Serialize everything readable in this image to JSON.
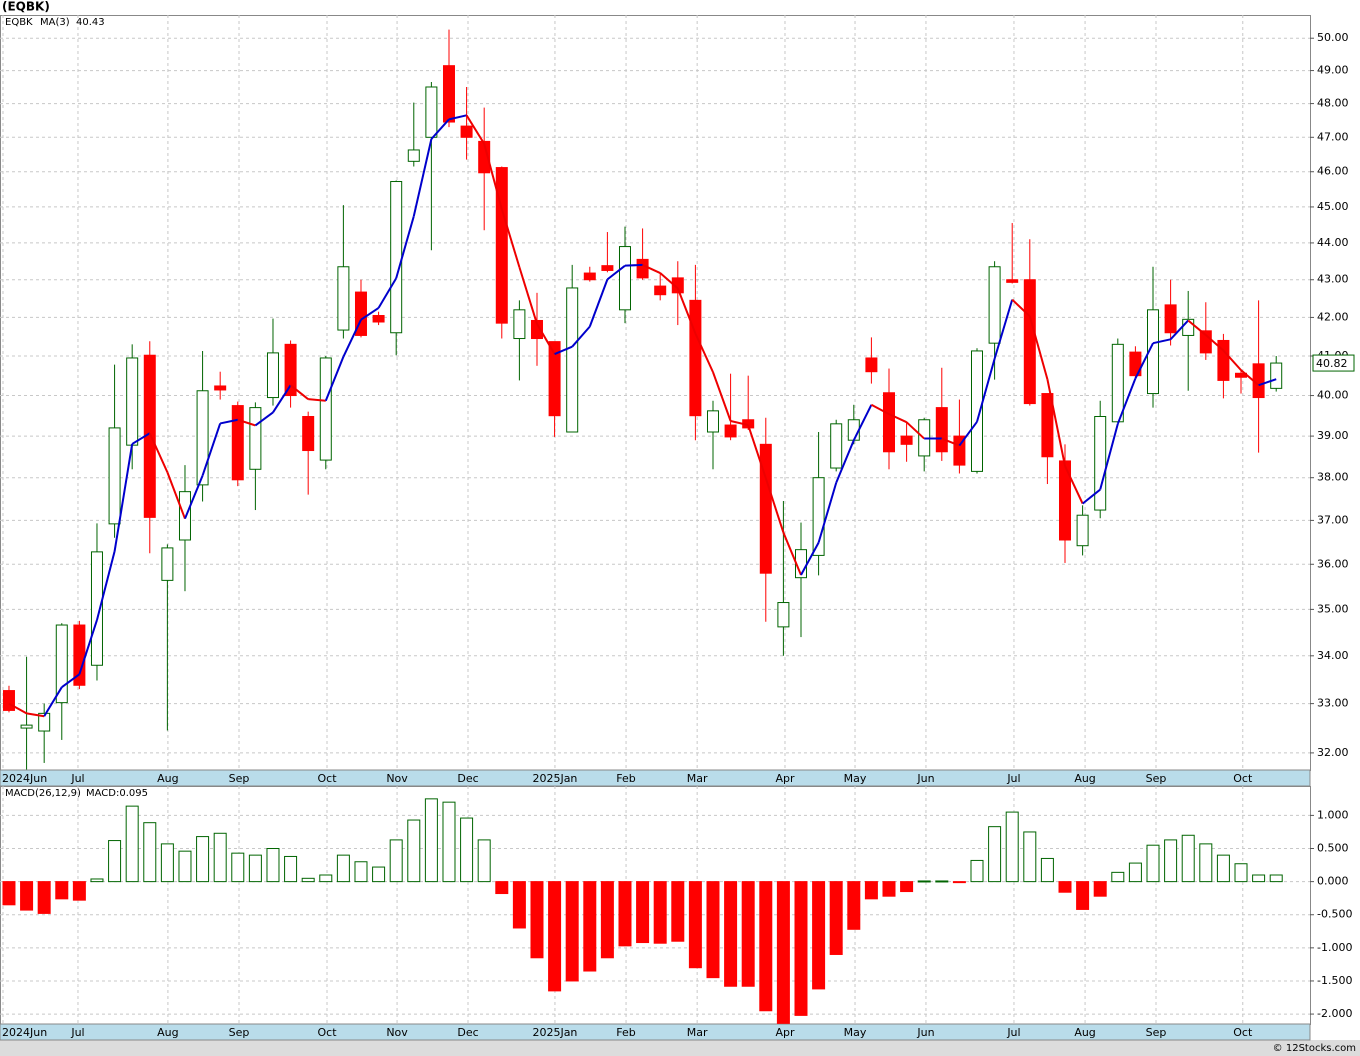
{
  "title": "(EQBK)",
  "footer": "© 12Stocks.com",
  "chart_data": [
    {
      "type": "candlestick",
      "log_scale": true,
      "grid": true,
      "xlim": [
        -0.51,
        73.92
      ],
      "ylim": [
        31.66,
        50.73
      ],
      "yticks": [
        {
          "value": 32,
          "label": "32.00"
        },
        {
          "value": 33,
          "label": "33.00"
        },
        {
          "value": 34,
          "label": "34.00"
        },
        {
          "value": 35,
          "label": "35.00"
        },
        {
          "value": 36,
          "label": "36.00"
        },
        {
          "value": 37,
          "label": "37.00"
        },
        {
          "value": 38,
          "label": "38.00"
        },
        {
          "value": 39,
          "label": "39.00"
        },
        {
          "value": 40,
          "label": "40.00"
        },
        {
          "value": 41,
          "label": "41.00"
        },
        {
          "value": 42,
          "label": "42.00"
        },
        {
          "value": 43,
          "label": "43.00"
        },
        {
          "value": 44,
          "label": "44.00"
        },
        {
          "value": 45,
          "label": "45.00"
        },
        {
          "value": 46,
          "label": "46.00"
        },
        {
          "value": 47,
          "label": "47.00"
        },
        {
          "value": 48,
          "label": "48.00"
        },
        {
          "value": 49,
          "label": "49.00"
        },
        {
          "value": 50,
          "label": "50.00"
        }
      ],
      "xticks": [
        {
          "value": -0.34,
          "label": "2024Jun"
        },
        {
          "value": 3.92,
          "label": "Jul"
        },
        {
          "value": 9.03,
          "label": "Aug"
        },
        {
          "value": 13.07,
          "label": "Sep"
        },
        {
          "value": 18.07,
          "label": "Oct"
        },
        {
          "value": 22.05,
          "label": "Nov"
        },
        {
          "value": 26.08,
          "label": "Dec"
        },
        {
          "value": 31.02,
          "label": "2025Jan"
        },
        {
          "value": 35.06,
          "label": "Feb"
        },
        {
          "value": 39.1,
          "label": "Mar"
        },
        {
          "value": 44.09,
          "label": "Apr"
        },
        {
          "value": 48.07,
          "label": "May"
        },
        {
          "value": 52.1,
          "label": "Jun"
        },
        {
          "value": 57.1,
          "label": "Jul"
        },
        {
          "value": 61.14,
          "label": "Aug"
        },
        {
          "value": 65.17,
          "label": "Sep"
        },
        {
          "value": 70.1,
          "label": "Oct"
        }
      ],
      "series": [
        {
          "name": "EQBK",
          "color": "#006400",
          "down_color": "#ff0000",
          "close_label": "40.82",
          "open": [
            33.27,
            32.5,
            32.44,
            33.02,
            34.66,
            33.8,
            36.92,
            38.78,
            41.02,
            35.64,
            36.55,
            37.83,
            40.24,
            39.75,
            38.2,
            39.95,
            41.3,
            39.48,
            38.42,
            41.67,
            42.67,
            42.05,
            41.6,
            46.3,
            47.0,
            49.15,
            47.33,
            46.88,
            46.12,
            41.45,
            41.92,
            41.37,
            39.1,
            43.18,
            43.38,
            42.2,
            43.55,
            42.83,
            43.05,
            42.45,
            39.1,
            39.27,
            39.4,
            38.8,
            34.62,
            35.7,
            36.2,
            38.23,
            38.9,
            40.95,
            40.07,
            39.0,
            38.52,
            39.7,
            39.0,
            38.15,
            41.33,
            43.0,
            43.0,
            40.05,
            38.4,
            36.42,
            37.24,
            39.35,
            41.1,
            40.05,
            42.33,
            41.53,
            41.65,
            41.4,
            40.56,
            40.8,
            40.18
          ],
          "high": [
            33.37,
            33.98,
            33.0,
            34.7,
            34.75,
            36.93,
            40.78,
            41.3,
            41.38,
            36.45,
            38.3,
            41.13,
            40.6,
            39.85,
            39.83,
            41.97,
            41.4,
            39.6,
            41.0,
            45.05,
            43.0,
            42.15,
            45.75,
            48.03,
            48.65,
            50.27,
            48.5,
            47.88,
            46.15,
            42.45,
            42.65,
            41.37,
            43.4,
            43.35,
            44.3,
            44.45,
            44.4,
            43.15,
            43.5,
            43.4,
            39.87,
            40.55,
            40.5,
            39.45,
            37.45,
            36.95,
            39.1,
            39.4,
            39.77,
            41.48,
            40.68,
            39.35,
            39.45,
            40.7,
            39.9,
            41.2,
            43.5,
            44.55,
            44.1,
            40.05,
            38.8,
            37.35,
            39.87,
            41.45,
            41.25,
            43.35,
            43.0,
            42.7,
            42.4,
            41.57,
            40.65,
            42.45,
            41.0
          ],
          "low": [
            32.82,
            31.67,
            31.8,
            32.26,
            33.3,
            33.48,
            36.6,
            38.2,
            36.25,
            32.45,
            35.4,
            37.44,
            39.9,
            37.8,
            37.24,
            39.75,
            39.7,
            37.6,
            38.2,
            41.45,
            41.48,
            41.8,
            41.02,
            46.15,
            43.8,
            47.3,
            46.35,
            44.35,
            41.45,
            40.38,
            40.75,
            38.98,
            39.1,
            42.95,
            43.2,
            41.85,
            43.0,
            42.45,
            41.8,
            38.9,
            38.2,
            38.9,
            39.15,
            34.73,
            34.0,
            34.4,
            35.75,
            38.15,
            38.8,
            40.3,
            38.2,
            38.38,
            38.15,
            38.4,
            38.1,
            38.1,
            40.4,
            42.9,
            39.75,
            37.85,
            36.03,
            36.2,
            37.05,
            39.35,
            40.45,
            39.7,
            41.27,
            40.12,
            40.9,
            39.93,
            40.05,
            38.6,
            40.1
          ],
          "close": [
            32.86,
            32.56,
            32.8,
            34.66,
            33.38,
            36.28,
            39.2,
            40.95,
            37.07,
            36.37,
            37.67,
            40.12,
            40.14,
            37.95,
            39.7,
            41.08,
            40.0,
            38.65,
            40.95,
            43.35,
            41.53,
            41.88,
            45.72,
            46.63,
            48.5,
            47.45,
            47.0,
            45.97,
            41.85,
            42.2,
            41.45,
            39.5,
            42.78,
            43.0,
            43.25,
            43.9,
            43.05,
            42.6,
            42.65,
            39.5,
            39.62,
            38.98,
            39.2,
            35.8,
            35.15,
            36.33,
            38.0,
            39.3,
            39.4,
            40.6,
            38.62,
            38.8,
            39.4,
            38.62,
            38.3,
            41.13,
            43.35,
            42.93,
            39.8,
            38.5,
            36.55,
            37.12,
            39.48,
            41.3,
            40.5,
            42.2,
            41.6,
            41.95,
            41.08,
            40.38,
            40.46,
            39.95,
            40.82
          ]
        },
        {
          "name": "MA(3)",
          "color": "#0000cc",
          "down_color": "#ee0000",
          "value_label": "40.43",
          "values": [
            33.0,
            32.8,
            32.74,
            33.34,
            33.61,
            34.77,
            36.29,
            38.81,
            39.07,
            38.13,
            37.04,
            38.05,
            39.31,
            39.4,
            39.26,
            39.58,
            40.26,
            39.91,
            39.87,
            40.98,
            41.94,
            42.25,
            43.04,
            44.74,
            46.95,
            47.53,
            47.65,
            46.81,
            44.94,
            43.34,
            41.83,
            41.05,
            41.24,
            41.76,
            43.01,
            43.38,
            43.4,
            43.18,
            42.77,
            41.58,
            40.59,
            39.37,
            39.27,
            37.99,
            36.72,
            35.76,
            36.49,
            37.88,
            38.9,
            39.77,
            39.54,
            39.34,
            38.94,
            38.94,
            38.77,
            39.35,
            40.93,
            42.47,
            42.03,
            40.41,
            38.28,
            37.39,
            37.72,
            39.3,
            40.43,
            41.33,
            41.43,
            41.92,
            41.54,
            41.14,
            40.64,
            40.26,
            40.41
          ]
        }
      ]
    },
    {
      "type": "bar",
      "grid": true,
      "xlim": [
        -0.51,
        73.92
      ],
      "ylim": [
        -2.15,
        1.444
      ],
      "yticks": [
        {
          "value": -2,
          "label": "-2.000"
        },
        {
          "value": -1.5,
          "label": "-1.500"
        },
        {
          "value": -1,
          "label": "-1.000"
        },
        {
          "value": -0.5,
          "label": "-0.500"
        },
        {
          "value": 0,
          "label": "0.000"
        },
        {
          "value": 0.5,
          "label": "0.500"
        },
        {
          "value": 1,
          "label": "1.000"
        }
      ],
      "xticks": [
        {
          "value": -0.34,
          "label": "2024Jun"
        },
        {
          "value": 3.92,
          "label": "Jul"
        },
        {
          "value": 9.03,
          "label": "Aug"
        },
        {
          "value": 13.07,
          "label": "Sep"
        },
        {
          "value": 18.07,
          "label": "Oct"
        },
        {
          "value": 22.05,
          "label": "Nov"
        },
        {
          "value": 26.08,
          "label": "Dec"
        },
        {
          "value": 31.02,
          "label": "2025Jan"
        },
        {
          "value": 35.06,
          "label": "Feb"
        },
        {
          "value": 39.1,
          "label": "Mar"
        },
        {
          "value": 44.09,
          "label": "Apr"
        },
        {
          "value": 48.07,
          "label": "May"
        },
        {
          "value": 52.1,
          "label": "Jun"
        },
        {
          "value": 57.1,
          "label": "Jul"
        },
        {
          "value": 61.14,
          "label": "Aug"
        },
        {
          "value": 65.17,
          "label": "Sep"
        },
        {
          "value": 70.1,
          "label": "Oct"
        }
      ],
      "series": [
        {
          "name": "MACD(26,12,9)",
          "color": "#006400",
          "down_color": "#ff0000",
          "value_label": "MACD:0.095",
          "values": [
            -0.35,
            -0.43,
            -0.48,
            -0.26,
            -0.28,
            0.04,
            0.62,
            1.14,
            0.89,
            0.57,
            0.46,
            0.68,
            0.73,
            0.43,
            0.4,
            0.5,
            0.38,
            0.05,
            0.1,
            0.4,
            0.3,
            0.22,
            0.63,
            0.93,
            1.25,
            1.2,
            0.96,
            0.63,
            -0.18,
            -0.7,
            -1.15,
            -1.65,
            -1.5,
            -1.35,
            -1.15,
            -0.97,
            -0.92,
            -0.93,
            -0.9,
            -1.3,
            -1.45,
            -1.58,
            -1.58,
            -1.95,
            -2.14,
            -2.02,
            -1.62,
            -1.1,
            -0.72,
            -0.26,
            -0.22,
            -0.15,
            0.01,
            0.01,
            -0.01,
            0.32,
            0.83,
            1.05,
            0.75,
            0.35,
            -0.16,
            -0.42,
            -0.22,
            0.14,
            0.28,
            0.55,
            0.63,
            0.7,
            0.57,
            0.4,
            0.27,
            0.1,
            0.1
          ]
        }
      ]
    }
  ]
}
